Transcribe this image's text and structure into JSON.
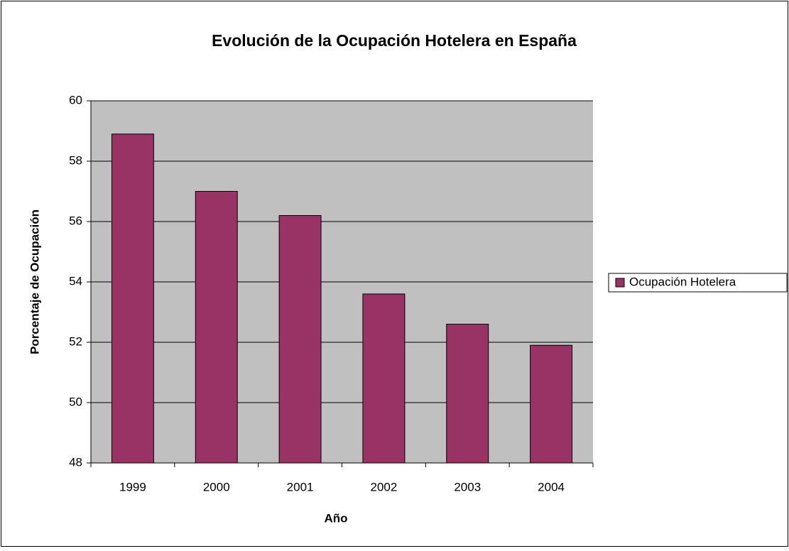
{
  "chart_data": {
    "type": "bar",
    "title": "Evolución de la Ocupación Hotelera en España",
    "x_label": "Año",
    "y_label": "Porcentaje de Ocupación",
    "categories": [
      "1999",
      "2000",
      "2001",
      "2002",
      "2003",
      "2004"
    ],
    "series": [
      {
        "name": "Ocupación Hotelera",
        "color": "#993366",
        "values": [
          58.9,
          57.0,
          56.2,
          53.6,
          52.6,
          51.9
        ]
      }
    ],
    "ylim": [
      48,
      60
    ],
    "yticks": [
      48,
      50,
      52,
      54,
      56,
      58,
      60
    ],
    "grid": true,
    "legend": "right"
  }
}
